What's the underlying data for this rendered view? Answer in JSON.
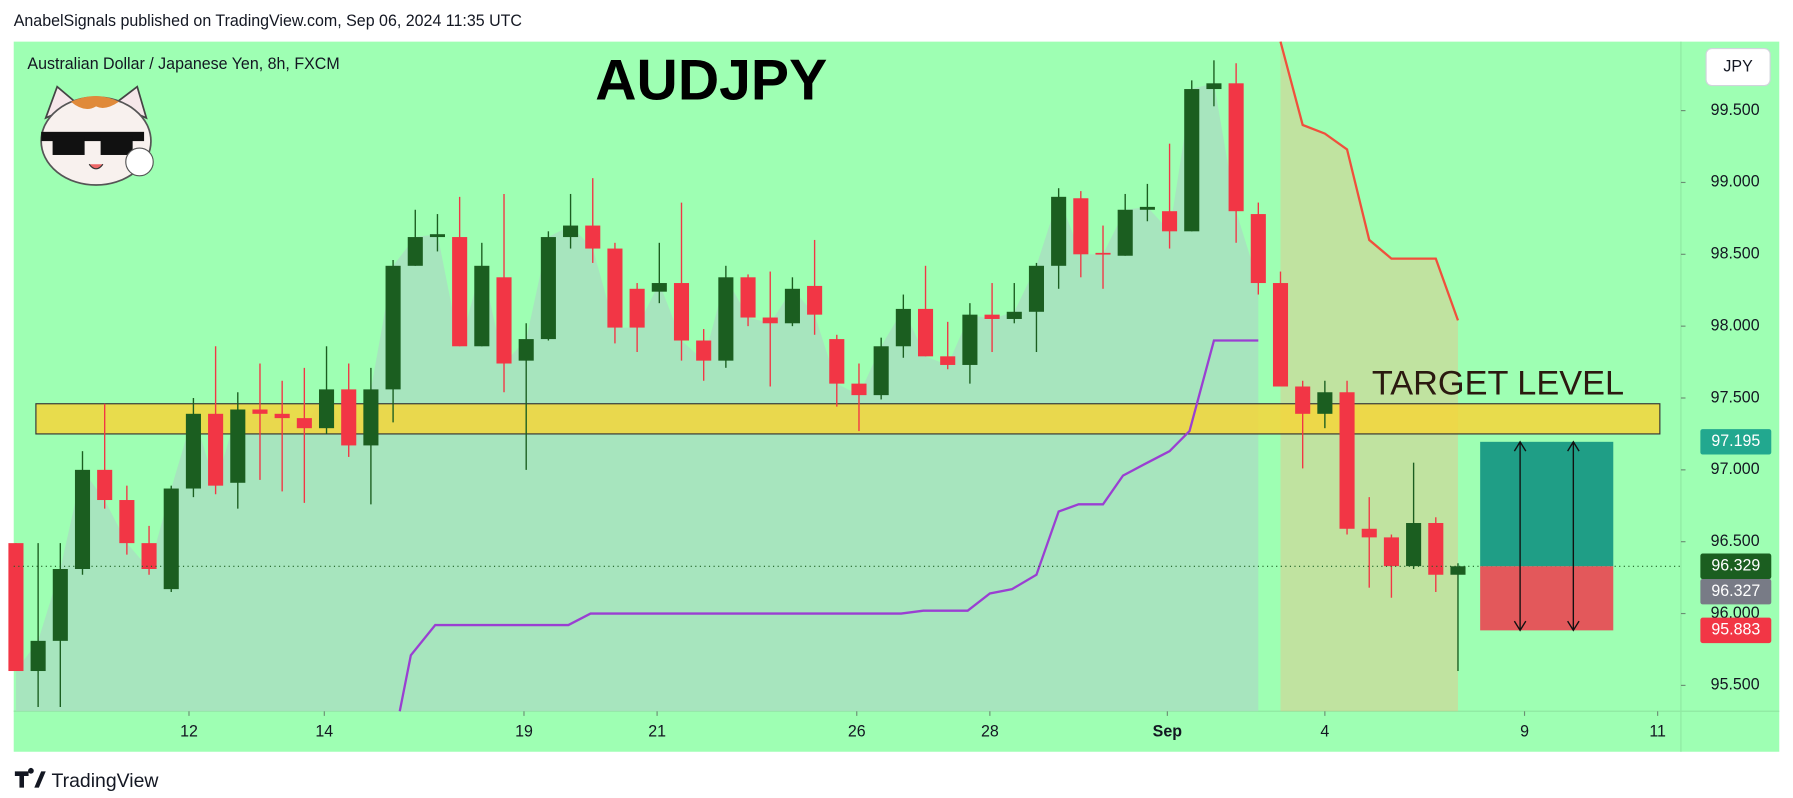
{
  "header": {
    "publisher": "AnabelSignals published on TradingView.com, Sep 06, 2024 11:35 UTC",
    "footer": "TradingView"
  },
  "chart_data": {
    "type": "candlestick",
    "title": "AUDJPY",
    "subtitle": "Australian Dollar / Japanese Yen, 8h, FXCM",
    "currency": "JPY",
    "colors": {
      "up": "#1b5e20",
      "down": "#f23645",
      "background": "#9effb3",
      "area": "#a9dcc2"
    },
    "ohlc": [
      [
        96.49,
        96.49,
        95.6,
        95.6
      ],
      [
        95.6,
        96.49,
        95.35,
        95.81
      ],
      [
        95.81,
        96.49,
        95.35,
        96.31
      ],
      [
        96.31,
        97.13,
        96.27,
        97.0
      ],
      [
        97.0,
        97.46,
        96.73,
        96.79
      ],
      [
        96.79,
        96.89,
        96.41,
        96.49
      ],
      [
        96.49,
        96.61,
        96.27,
        96.31
      ],
      [
        96.17,
        96.89,
        96.15,
        96.87
      ],
      [
        96.87,
        97.5,
        96.81,
        97.39
      ],
      [
        97.39,
        97.86,
        96.83,
        96.89
      ],
      [
        96.91,
        97.54,
        96.73,
        97.42
      ],
      [
        97.42,
        97.74,
        96.93,
        97.39
      ],
      [
        97.39,
        97.62,
        96.85,
        97.36
      ],
      [
        97.36,
        97.71,
        96.77,
        97.29
      ],
      [
        97.29,
        97.86,
        97.25,
        97.56
      ],
      [
        97.56,
        97.74,
        97.09,
        97.17
      ],
      [
        97.17,
        97.71,
        96.76,
        97.56
      ],
      [
        97.56,
        98.46,
        97.33,
        98.42
      ],
      [
        98.42,
        98.81,
        98.42,
        98.62
      ],
      [
        98.62,
        98.78,
        98.52,
        98.64
      ],
      [
        98.62,
        98.9,
        97.86,
        97.86
      ],
      [
        97.86,
        98.58,
        97.86,
        98.42
      ],
      [
        98.34,
        98.92,
        97.54,
        97.74
      ],
      [
        97.76,
        98.02,
        97.0,
        97.91
      ],
      [
        97.91,
        98.66,
        97.9,
        98.62
      ],
      [
        98.62,
        98.92,
        98.54,
        98.7
      ],
      [
        98.7,
        99.03,
        98.44,
        98.54
      ],
      [
        98.54,
        98.58,
        97.88,
        97.99
      ],
      [
        98.26,
        98.3,
        97.82,
        97.99
      ],
      [
        98.24,
        98.58,
        98.16,
        98.3
      ],
      [
        98.3,
        98.86,
        97.76,
        97.9
      ],
      [
        97.9,
        97.98,
        97.62,
        97.76
      ],
      [
        97.76,
        98.42,
        97.71,
        98.34
      ],
      [
        98.34,
        98.36,
        98.0,
        98.06
      ],
      [
        98.06,
        98.38,
        97.58,
        98.02
      ],
      [
        98.02,
        98.34,
        98.0,
        98.26
      ],
      [
        98.28,
        98.6,
        97.94,
        98.08
      ],
      [
        97.91,
        97.94,
        97.44,
        97.6
      ],
      [
        97.6,
        97.74,
        97.27,
        97.52
      ],
      [
        97.52,
        97.92,
        97.49,
        97.86
      ],
      [
        97.86,
        98.22,
        97.78,
        98.12
      ],
      [
        98.12,
        98.42,
        97.79,
        97.79
      ],
      [
        97.79,
        98.03,
        97.7,
        97.73
      ],
      [
        97.73,
        98.16,
        97.6,
        98.08
      ],
      [
        98.08,
        98.3,
        97.82,
        98.05
      ],
      [
        98.05,
        98.3,
        98.02,
        98.1
      ],
      [
        98.1,
        98.44,
        97.82,
        98.42
      ],
      [
        98.42,
        98.96,
        98.26,
        98.9
      ],
      [
        98.89,
        98.94,
        98.34,
        98.5
      ],
      [
        98.51,
        98.7,
        98.26,
        98.5
      ],
      [
        98.49,
        98.92,
        98.49,
        98.81
      ],
      [
        98.81,
        98.99,
        98.73,
        98.83
      ],
      [
        98.8,
        99.27,
        98.54,
        98.66
      ],
      [
        98.66,
        99.71,
        98.66,
        99.65
      ],
      [
        99.65,
        99.85,
        99.53,
        99.69
      ],
      [
        99.69,
        99.83,
        98.58,
        98.8
      ],
      [
        98.78,
        98.86,
        98.22,
        98.3
      ],
      [
        98.3,
        98.38,
        97.58,
        97.58
      ],
      [
        97.58,
        97.62,
        97.01,
        97.39
      ],
      [
        97.39,
        97.62,
        97.29,
        97.54
      ],
      [
        97.54,
        97.62,
        96.55,
        96.59
      ],
      [
        96.59,
        96.81,
        96.18,
        96.53
      ],
      [
        96.53,
        96.55,
        96.11,
        96.33
      ],
      [
        96.33,
        97.05,
        96.31,
        96.63
      ],
      [
        96.63,
        96.67,
        96.15,
        96.27
      ],
      [
        96.27,
        96.35,
        95.6,
        96.329
      ]
    ],
    "xlim": [
      -0.1,
      75.05
    ],
    "xticks": [
      {
        "value": 7.8,
        "label": "12"
      },
      {
        "value": 13.9,
        "label": "14"
      },
      {
        "value": 22.9,
        "label": "19"
      },
      {
        "value": 28.9,
        "label": "21"
      },
      {
        "value": 37.9,
        "label": "26"
      },
      {
        "value": 43.9,
        "label": "28"
      },
      {
        "value": 51.9,
        "label": "Sep"
      },
      {
        "value": 59,
        "label": "4"
      },
      {
        "value": 68,
        "label": "9"
      },
      {
        "value": 74,
        "label": "11"
      }
    ],
    "ylim": [
      95.32,
      99.98
    ],
    "yticks": [
      {
        "value": 95.5,
        "label": "95.500"
      },
      {
        "value": 96,
        "label": "96.000"
      },
      {
        "value": 96.5,
        "label": "96.500"
      },
      {
        "value": 97,
        "label": "97.000"
      },
      {
        "value": 97.5,
        "label": "97.500"
      },
      {
        "value": 98,
        "label": "98.000"
      },
      {
        "value": 98.5,
        "label": "98.500"
      },
      {
        "value": 99,
        "label": "99.000"
      },
      {
        "value": 99.5,
        "label": "99.500"
      }
    ],
    "lines": [
      {
        "color": "#9a3fd2",
        "x": [
          17.3,
          17.8,
          18.9,
          24.9,
          25.9,
          39.9,
          40.9,
          42.9,
          43.9,
          44.9,
          46.0,
          47.0,
          47.9,
          49.0,
          49.9,
          51.0,
          52.0,
          52.9,
          54.0,
          56.0
        ],
        "values": [
          95.32,
          95.71,
          95.92,
          95.92,
          96.0,
          96.0,
          96.02,
          96.02,
          96.14,
          96.17,
          96.27,
          96.71,
          96.76,
          96.76,
          96.96,
          97.05,
          97.13,
          97.27,
          97.9,
          97.9
        ]
      },
      {
        "color": "#f0503c",
        "fill": "#e8c08a",
        "x": [
          57,
          58,
          59,
          60,
          61,
          62,
          64,
          65
        ],
        "values": [
          99.98,
          99.4,
          99.34,
          99.23,
          98.6,
          98.47,
          98.47,
          98.04
        ]
      }
    ],
    "target_zone": {
      "label": "TARGET LEVEL",
      "range": [
        97.25,
        97.46
      ],
      "x": [
        0.9,
        74.1
      ],
      "color": "#f5d63a"
    },
    "position": {
      "x": [
        66,
        72
      ],
      "target": 97.195,
      "entry": 96.329,
      "stop": 95.883,
      "profit_color": "#1f9e86",
      "loss_color": "#e3585b"
    },
    "price_labels": [
      {
        "value": 97.195,
        "color": "#22a88f"
      },
      {
        "value": 96.329,
        "color": "#1b5e20"
      },
      {
        "value": 96.327,
        "color": "#787b86"
      },
      {
        "value": 95.883,
        "color": "#f23645"
      }
    ]
  }
}
